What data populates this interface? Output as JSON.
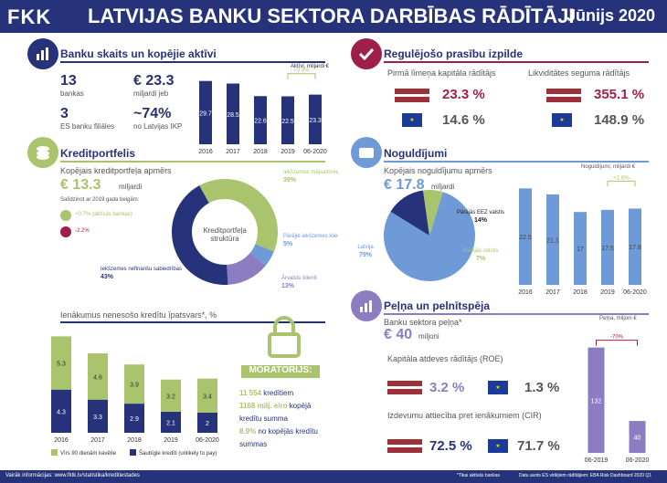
{
  "header": {
    "title": "LATVIJAS BANKU SEKTORA DARBĪBAS RĀDĪTĀJI",
    "date": "Jūnijs 2020",
    "logo": "FKK"
  },
  "bank_count": {
    "title": "Banku skaits un kopējie aktīvi",
    "banks_num": "13",
    "banks_label": "bankas",
    "branches_num": "3",
    "branches_label": "ES banku filiāles",
    "assets_num": "€ 23.3",
    "assets_label": "miljardi jeb",
    "gdp_num": "~74%",
    "gdp_label": "no Latvijas IKP"
  },
  "compliance": {
    "title": "Regulējošo prasību izpilde",
    "tier1_title": "Pirmā līmeņa kapitāla rādītājs",
    "liq_title": "Likviditātes seguma rādītājs",
    "lv_tier1": "23.3 %",
    "eu_tier1": "14.6 %",
    "lv_liq": "355.1 %",
    "eu_liq": "148.9 %"
  },
  "credit": {
    "title": "Kreditportfelis",
    "total_label": "Kopējais kreditportfeļa apmērs",
    "total_value": "€ 13.3",
    "total_unit": "miljardi",
    "compare_label": "Salīdzinot ar 2019 gada beigām:",
    "up_text": "+0.7% (aktīvās bankas)",
    "down_text": "-2.2%",
    "donut_center": "Kreditportfeļa struktūra"
  },
  "deposits": {
    "title": "Noguldījumi",
    "total_label": "Kopējais noguldījumu apmērs",
    "total_value": "€ 17.8",
    "total_unit": "miljardi",
    "unit_label": "Noguldījumi, miljardi €"
  },
  "profit": {
    "title": "Peļņa un pelnītspēja",
    "label": "Banku sektora peļņa*",
    "value": "€ 40",
    "unit": "miljoni",
    "unit_label": "Peļņa, miljoni €",
    "roe_title": "Kapitāla atdeves rādītājs (ROE)",
    "lv_roe": "3.2 %",
    "eu_roe": "1.3 %",
    "cir_title": "Izdevumu attiecība pret ienākumiem (CIR)",
    "lv_cir": "72.5 %",
    "eu_cir": "71.7 %"
  },
  "moratorium": {
    "title": "MORATORIJS:",
    "line1_b": "11 554",
    "line1": "kredītiem",
    "line2_b": "1168 milj. eiro",
    "line2": "kopējā kredītu summa",
    "line3_b": "8.9%",
    "line3": "no kopējās kredītu summas"
  },
  "footer": {
    "left": "Vairāk informācijas: www.fktk.lv/statistika/kreditiestades",
    "mid": "*Tikai aktīvās bankas",
    "right": "Datu avots ES vidējiem rādītājiem: EBA Risk Dashboard 2020 Q1"
  },
  "chart_data": [
    {
      "type": "bar",
      "title": "Aktīvi, miljardi €",
      "categories": [
        "2016",
        "2017",
        "2018",
        "2019",
        "06-2020"
      ],
      "values": [
        29.7,
        28.5,
        22.6,
        22.5,
        23.3
      ],
      "annotation": "+3.4%",
      "color": "#26337a"
    },
    {
      "type": "pie",
      "title": "Kreditportfeļa struktūra",
      "slices": [
        {
          "name": "Iekšzemes mājsaimniecības",
          "value": 39,
          "label": "39%",
          "color": "#a9c46c"
        },
        {
          "name": "Pārējie iekšzemes klienti",
          "value": 5,
          "label": "5%",
          "color": "#6e9ad8"
        },
        {
          "name": "Ārvalstu klienti",
          "value": 13,
          "label": "13%",
          "color": "#8c7dc2"
        },
        {
          "name": "Iekšzemes nefinanšu sabiedrības",
          "value": 43,
          "label": "43%",
          "color": "#26337a"
        }
      ]
    },
    {
      "type": "bar",
      "title": "Noguldījumi, miljardi €",
      "categories": [
        "2016",
        "2017",
        "2018",
        "2019",
        "06-2020"
      ],
      "values": [
        22.5,
        21.1,
        17.0,
        17.5,
        17.8
      ],
      "annotation": "+1.6%",
      "color": "#6e9ad8"
    },
    {
      "type": "pie",
      "slices": [
        {
          "name": "Latvija",
          "value": 79,
          "label": "79%",
          "color": "#6e9ad8"
        },
        {
          "name": "Pārējās EEZ valstis",
          "value": 14,
          "label": "14%",
          "color": "#26337a"
        },
        {
          "name": "Pārējās valstis",
          "value": 7,
          "label": "7%",
          "color": "#a9c46c"
        }
      ]
    },
    {
      "type": "bar",
      "title": "Ienākumus nenesošo kredītu īpatsvars*, %",
      "categories": [
        "2016",
        "2017",
        "2018",
        "2019",
        "06-2020"
      ],
      "series": [
        {
          "name": "Šaubīgie kredīti (unlikely to pay)",
          "values": [
            4.3,
            3.3,
            2.9,
            2.1,
            2.0
          ],
          "color": "#26337a"
        },
        {
          "name": "Vīrs 90 dienām kavētie",
          "values": [
            5.3,
            4.6,
            3.9,
            3.2,
            3.4
          ],
          "color": "#a9c46c"
        }
      ]
    },
    {
      "type": "bar",
      "title": "Peļņa, miljoni €",
      "categories": [
        "06-2019",
        "06-2020"
      ],
      "values": [
        132,
        40
      ],
      "annotation": "-70%",
      "color": "#8c7dc2"
    }
  ]
}
